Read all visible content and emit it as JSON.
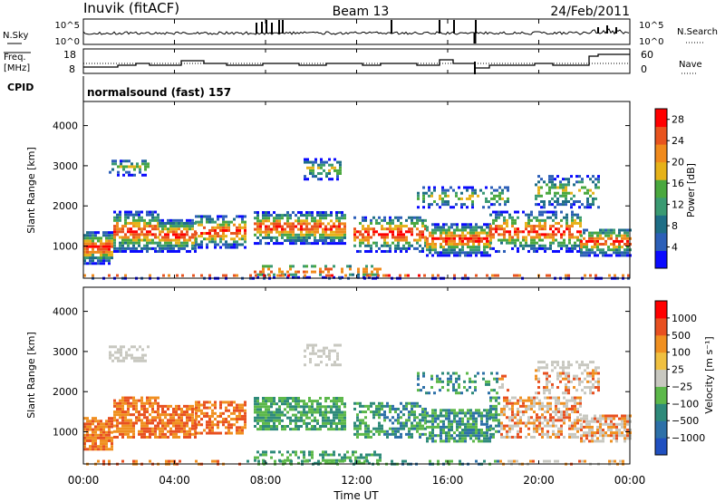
{
  "header": {
    "station": "Inuvik (fitACF)",
    "beam": "Beam 13",
    "date": "24/Feb/2011"
  },
  "noise_panel": {
    "left_label": "N.Sky",
    "right_label": "N.Search",
    "left_ticks": [
      "10^5",
      "10^0"
    ],
    "right_ticks": [
      "10^5",
      "10^0"
    ]
  },
  "freq_panel": {
    "left_label_1": "Freq.",
    "left_label_2": "[MHz]",
    "right_label": "Nave",
    "left_ticks": [
      "18",
      "8"
    ],
    "right_ticks": [
      "60",
      "0"
    ]
  },
  "cpid": {
    "label": "CPID",
    "value": "normalsound (fast) 157"
  },
  "chart_data": [
    {
      "type": "heatmap",
      "name_shown": "",
      "ylabel": "Slant Range [km]",
      "y_ticks": [
        "1000",
        "2000",
        "3000",
        "4000"
      ],
      "ylim": [
        200,
        4600
      ],
      "colorbar": {
        "label": "Power [dB]",
        "ticks": [
          "4",
          "8",
          "12",
          "16",
          "20",
          "24",
          "28"
        ],
        "range": [
          0,
          30
        ],
        "colors": [
          "#0a0aff",
          "#2c5fb8",
          "#1e6e86",
          "#3a9a72",
          "#4aa83e",
          "#e6b219",
          "#f08a1c",
          "#e8541e",
          "#ff0000"
        ]
      }
    },
    {
      "type": "heatmap",
      "ylabel": "Slant Range [km]",
      "y_ticks": [
        "1000",
        "2000",
        "3000",
        "4000"
      ],
      "ylim": [
        200,
        4600
      ],
      "colorbar": {
        "label": "Velocity [m s⁻¹]",
        "ticks": [
          "1000",
          "500",
          "100",
          "25",
          "−25",
          "−100",
          "−500",
          "−1000"
        ],
        "colors": [
          "#2050c0",
          "#2d70a8",
          "#2e8a7a",
          "#5cb84a",
          "#c8c8c0",
          "#f0c040",
          "#f09020",
          "#e85020",
          "#ff0000"
        ]
      }
    }
  ],
  "xaxis": {
    "label": "Time UT",
    "ticks": [
      "00:00",
      "04:00",
      "08:00",
      "12:00",
      "16:00",
      "20:00",
      "00:00"
    ]
  }
}
